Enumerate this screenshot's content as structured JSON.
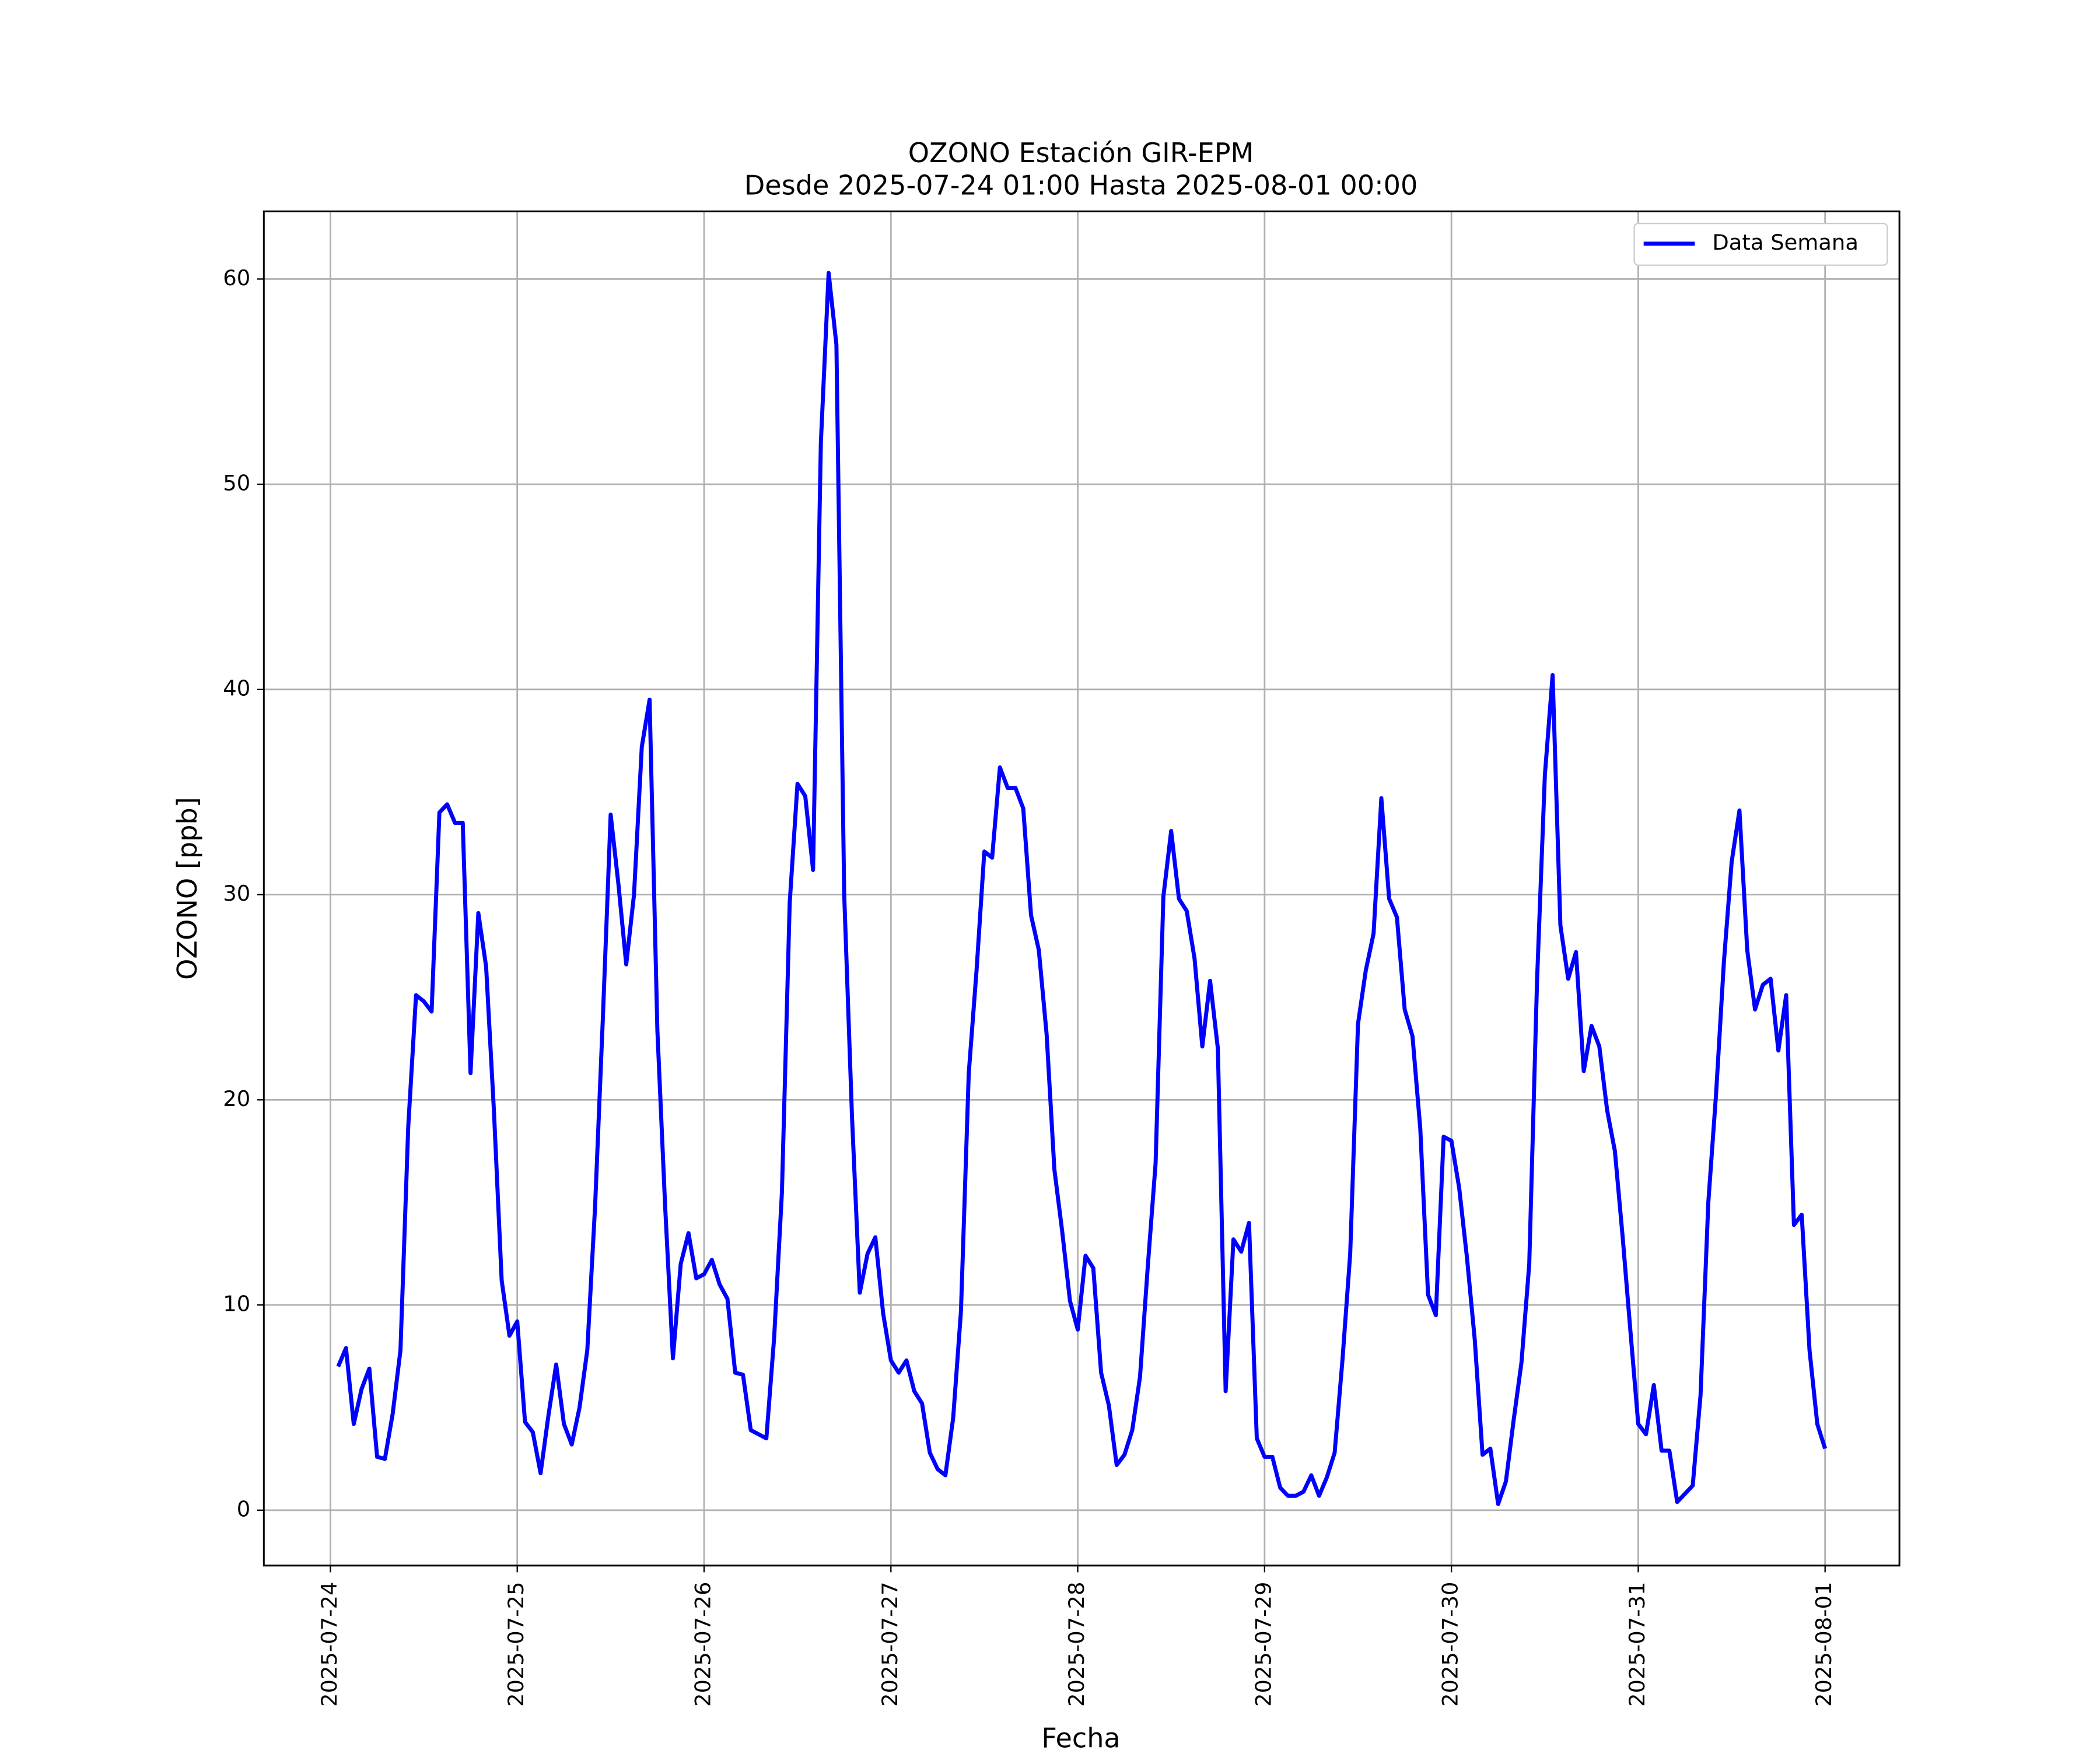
{
  "chart_data": {
    "type": "line",
    "title": "OZONO Estación GIR-EPM",
    "subtitle": "Desde 2025-07-24 01:00 Hasta 2025-08-01 00:00",
    "x_label": "Fecha",
    "y_label": "OZONO [ppb]",
    "x": [
      "2025-07-24 01:00",
      "2025-07-24 02:00",
      "2025-07-24 03:00",
      "2025-07-24 04:00",
      "2025-07-24 05:00",
      "2025-07-24 06:00",
      "2025-07-24 07:00",
      "2025-07-24 08:00",
      "2025-07-24 09:00",
      "2025-07-24 10:00",
      "2025-07-24 11:00",
      "2025-07-24 12:00",
      "2025-07-24 13:00",
      "2025-07-24 14:00",
      "2025-07-24 15:00",
      "2025-07-24 16:00",
      "2025-07-24 17:00",
      "2025-07-24 18:00",
      "2025-07-24 19:00",
      "2025-07-24 20:00",
      "2025-07-24 21:00",
      "2025-07-24 22:00",
      "2025-07-24 23:00",
      "2025-07-25 00:00",
      "2025-07-25 01:00",
      "2025-07-25 02:00",
      "2025-07-25 03:00",
      "2025-07-25 04:00",
      "2025-07-25 05:00",
      "2025-07-25 06:00",
      "2025-07-25 07:00",
      "2025-07-25 08:00",
      "2025-07-25 09:00",
      "2025-07-25 10:00",
      "2025-07-25 11:00",
      "2025-07-25 12:00",
      "2025-07-25 13:00",
      "2025-07-25 14:00",
      "2025-07-25 15:00",
      "2025-07-25 16:00",
      "2025-07-25 17:00",
      "2025-07-25 18:00",
      "2025-07-25 19:00",
      "2025-07-25 20:00",
      "2025-07-25 21:00",
      "2025-07-25 22:00",
      "2025-07-25 23:00",
      "2025-07-26 00:00",
      "2025-07-26 01:00",
      "2025-07-26 02:00",
      "2025-07-26 03:00",
      "2025-07-26 04:00",
      "2025-07-26 05:00",
      "2025-07-26 06:00",
      "2025-07-26 07:00",
      "2025-07-26 08:00",
      "2025-07-26 09:00",
      "2025-07-26 10:00",
      "2025-07-26 11:00",
      "2025-07-26 12:00",
      "2025-07-26 13:00",
      "2025-07-26 14:00",
      "2025-07-26 15:00",
      "2025-07-26 16:00",
      "2025-07-26 17:00",
      "2025-07-26 18:00",
      "2025-07-26 19:00",
      "2025-07-26 20:00",
      "2025-07-26 21:00",
      "2025-07-26 22:00",
      "2025-07-26 23:00",
      "2025-07-27 00:00",
      "2025-07-27 01:00",
      "2025-07-27 02:00",
      "2025-07-27 03:00",
      "2025-07-27 04:00",
      "2025-07-27 05:00",
      "2025-07-27 06:00",
      "2025-07-27 07:00",
      "2025-07-27 08:00",
      "2025-07-27 09:00",
      "2025-07-27 10:00",
      "2025-07-27 11:00",
      "2025-07-27 12:00",
      "2025-07-27 13:00",
      "2025-07-27 14:00",
      "2025-07-27 15:00",
      "2025-07-27 16:00",
      "2025-07-27 17:00",
      "2025-07-27 18:00",
      "2025-07-27 19:00",
      "2025-07-27 20:00",
      "2025-07-27 21:00",
      "2025-07-27 22:00",
      "2025-07-27 23:00",
      "2025-07-28 00:00",
      "2025-07-28 01:00",
      "2025-07-28 02:00",
      "2025-07-28 03:00",
      "2025-07-28 04:00",
      "2025-07-28 05:00",
      "2025-07-28 06:00",
      "2025-07-28 07:00",
      "2025-07-28 08:00",
      "2025-07-28 09:00",
      "2025-07-28 10:00",
      "2025-07-28 11:00",
      "2025-07-28 12:00",
      "2025-07-28 13:00",
      "2025-07-28 14:00",
      "2025-07-28 15:00",
      "2025-07-28 16:00",
      "2025-07-28 17:00",
      "2025-07-28 18:00",
      "2025-07-28 19:00",
      "2025-07-28 20:00",
      "2025-07-28 21:00",
      "2025-07-28 22:00",
      "2025-07-28 23:00",
      "2025-07-29 00:00",
      "2025-07-29 01:00",
      "2025-07-29 02:00",
      "2025-07-29 03:00",
      "2025-07-29 04:00",
      "2025-07-29 05:00",
      "2025-07-29 06:00",
      "2025-07-29 07:00",
      "2025-07-29 08:00",
      "2025-07-29 09:00",
      "2025-07-29 10:00",
      "2025-07-29 11:00",
      "2025-07-29 12:00",
      "2025-07-29 13:00",
      "2025-07-29 14:00",
      "2025-07-29 15:00",
      "2025-07-29 16:00",
      "2025-07-29 17:00",
      "2025-07-29 18:00",
      "2025-07-29 19:00",
      "2025-07-29 20:00",
      "2025-07-29 21:00",
      "2025-07-29 22:00",
      "2025-07-29 23:00",
      "2025-07-30 00:00",
      "2025-07-30 01:00",
      "2025-07-30 02:00",
      "2025-07-30 03:00",
      "2025-07-30 04:00",
      "2025-07-30 05:00",
      "2025-07-30 06:00",
      "2025-07-30 07:00",
      "2025-07-30 08:00",
      "2025-07-30 09:00",
      "2025-07-30 10:00",
      "2025-07-30 11:00",
      "2025-07-30 12:00",
      "2025-07-30 13:00",
      "2025-07-30 14:00",
      "2025-07-30 15:00",
      "2025-07-30 16:00",
      "2025-07-30 17:00",
      "2025-07-30 18:00",
      "2025-07-30 19:00",
      "2025-07-30 20:00",
      "2025-07-30 21:00",
      "2025-07-30 22:00",
      "2025-07-30 23:00",
      "2025-07-31 00:00",
      "2025-07-31 01:00",
      "2025-07-31 02:00",
      "2025-07-31 03:00",
      "2025-07-31 04:00",
      "2025-07-31 05:00",
      "2025-07-31 06:00",
      "2025-07-31 07:00",
      "2025-07-31 08:00",
      "2025-07-31 09:00",
      "2025-07-31 10:00",
      "2025-07-31 11:00",
      "2025-07-31 12:00",
      "2025-07-31 13:00",
      "2025-07-31 14:00",
      "2025-07-31 15:00",
      "2025-07-31 16:00",
      "2025-07-31 17:00",
      "2025-07-31 18:00",
      "2025-07-31 19:00",
      "2025-07-31 20:00",
      "2025-07-31 21:00",
      "2025-07-31 22:00",
      "2025-07-31 23:00",
      "2025-08-01 00:00"
    ],
    "series": [
      {
        "name": "Data Semana",
        "color": "#0000ff",
        "values": [
          7.0,
          7.9,
          4.2,
          5.9,
          6.9,
          2.6,
          2.5,
          4.7,
          7.8,
          18.7,
          25.1,
          24.8,
          24.3,
          34.0,
          34.4,
          33.5,
          33.5,
          21.3,
          29.1,
          26.5,
          19.5,
          11.2,
          8.5,
          9.2,
          4.3,
          3.8,
          1.8,
          4.6,
          7.1,
          4.2,
          3.2,
          5.0,
          7.8,
          14.8,
          24.0,
          33.9,
          30.5,
          26.6,
          30.0,
          37.2,
          39.5,
          23.4,
          14.8,
          7.4,
          12.0,
          13.5,
          11.3,
          11.5,
          12.2,
          11.0,
          10.3,
          6.7,
          6.6,
          3.9,
          3.7,
          3.5,
          8.4,
          15.5,
          29.6,
          35.4,
          34.8,
          31.2,
          52.0,
          60.3,
          56.8,
          30.0,
          19.2,
          10.6,
          12.5,
          13.3,
          9.6,
          7.3,
          6.7,
          7.3,
          5.8,
          5.2,
          2.8,
          2.0,
          1.7,
          4.5,
          9.7,
          21.3,
          26.3,
          32.1,
          31.8,
          36.2,
          35.2,
          35.2,
          34.2,
          29.0,
          27.3,
          23.2,
          16.6,
          13.6,
          10.2,
          8.8,
          12.4,
          11.8,
          6.7,
          5.1,
          2.2,
          2.7,
          3.9,
          6.5,
          11.9,
          16.9,
          29.9,
          33.1,
          29.8,
          29.2,
          26.9,
          22.6,
          25.8,
          22.5,
          5.8,
          13.2,
          12.6,
          14.0,
          3.5,
          2.6,
          2.6,
          1.1,
          0.7,
          0.7,
          0.9,
          1.7,
          0.7,
          1.6,
          2.8,
          7.3,
          12.5,
          23.7,
          26.3,
          28.1,
          34.7,
          29.8,
          28.9,
          24.4,
          23.1,
          18.6,
          10.5,
          9.5,
          18.2,
          18.0,
          15.7,
          12.3,
          8.3,
          2.7,
          3.0,
          0.3,
          1.4,
          4.4,
          7.2,
          12.0,
          25.8,
          35.8,
          40.7,
          28.5,
          25.9,
          27.2,
          21.4,
          23.6,
          22.6,
          19.5,
          17.5,
          13.3,
          8.7,
          4.2,
          3.7,
          6.1,
          2.9,
          2.9,
          0.4,
          0.8,
          1.2,
          5.6,
          15.0,
          20.3,
          26.7,
          31.6,
          34.1,
          27.3,
          24.4,
          25.6,
          25.9,
          22.4,
          25.1,
          13.9,
          14.4,
          7.8,
          4.2,
          3.0
        ]
      }
    ],
    "xlim": [
      "2025-07-23 15:27",
      "2025-08-01 09:33"
    ],
    "xticks": [
      "2025-07-24",
      "2025-07-25",
      "2025-07-26",
      "2025-07-27",
      "2025-07-28",
      "2025-07-29",
      "2025-07-30",
      "2025-07-31",
      "2025-08-01"
    ],
    "ylim": [
      -2.7,
      63.3
    ],
    "yticks": [
      0,
      10,
      20,
      30,
      40,
      50,
      60
    ],
    "grid": true,
    "legend": "upper right"
  }
}
